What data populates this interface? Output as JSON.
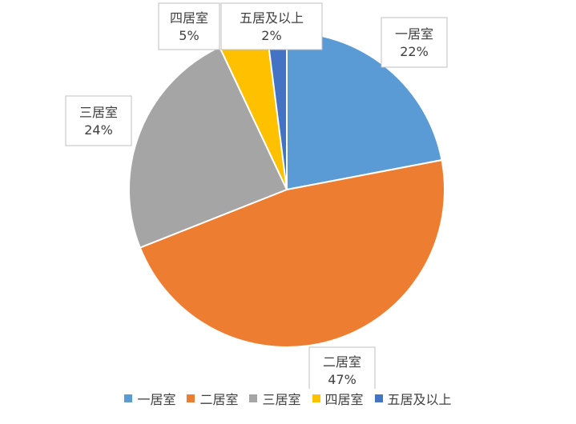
{
  "chart_data": {
    "type": "pie",
    "title": "",
    "legend_position": "bottom",
    "start_angle_deg": 0,
    "direction": "clockwise",
    "slices": [
      {
        "label": "一居室",
        "value": 22,
        "value_label": "22%",
        "color": "#5b9bd5"
      },
      {
        "label": "二居室",
        "value": 47,
        "value_label": "47%",
        "color": "#ed7d31"
      },
      {
        "label": "三居室",
        "value": 24,
        "value_label": "24%",
        "color": "#a5a5a5"
      },
      {
        "label": "四居室",
        "value": 5,
        "value_label": "5%",
        "color": "#ffc000"
      },
      {
        "label": "五居及以上",
        "value": 2,
        "value_label": "2%",
        "color": "#4472c4"
      }
    ]
  }
}
